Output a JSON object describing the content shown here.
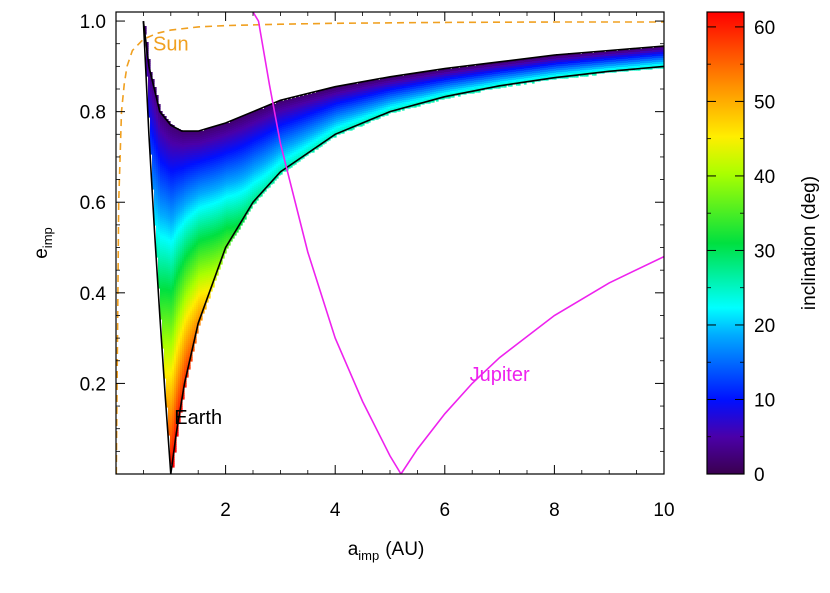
{
  "chart_data": {
    "type": "line",
    "title": "",
    "xlabel": {
      "main": "a",
      "sub": "imp",
      "unit": "(AU)"
    },
    "ylabel": {
      "main": "e",
      "sub": "imp"
    },
    "xlim": [
      0,
      10
    ],
    "ylim": [
      0,
      1.02
    ],
    "x_ticks": [
      2,
      4,
      6,
      8,
      10
    ],
    "y_ticks": [
      0.2,
      0.4,
      0.6,
      0.8,
      1.0
    ],
    "y_tick_labels": [
      "0.2",
      "0.4",
      "0.6",
      "0.8",
      "1.0"
    ],
    "grid": false,
    "colorbar": {
      "label": "inclination (deg)",
      "range": [
        0,
        62
      ],
      "ticks": [
        0,
        10,
        20,
        30,
        40,
        50,
        60
      ],
      "colormap": "rainbow (violet to red)"
    },
    "region": {
      "description_points": "Earth-crossing region boundaries",
      "upper_boundary": [
        [
          0.5,
          1.0
        ],
        [
          0.6,
          0.9
        ],
        [
          0.8,
          0.8
        ],
        [
          1.0,
          0.77
        ],
        [
          1.2,
          0.757
        ],
        [
          1.5,
          0.757
        ],
        [
          2.0,
          0.775
        ],
        [
          3.0,
          0.825
        ],
        [
          4.0,
          0.855
        ],
        [
          5.0,
          0.877
        ],
        [
          6.0,
          0.895
        ],
        [
          7.0,
          0.91
        ],
        [
          8.0,
          0.925
        ],
        [
          9.0,
          0.935
        ],
        [
          10.0,
          0.945
        ]
      ],
      "left_boundary": [
        [
          0.5,
          1.0
        ],
        [
          0.6,
          0.75
        ],
        [
          0.7,
          0.54
        ],
        [
          0.8,
          0.35
        ],
        [
          0.9,
          0.17
        ],
        [
          1.0,
          0.0
        ]
      ],
      "lower_boundary": [
        [
          1.0,
          0.0
        ],
        [
          1.1,
          0.09
        ],
        [
          1.25,
          0.2
        ],
        [
          1.5,
          0.333
        ],
        [
          2.0,
          0.5
        ],
        [
          2.5,
          0.6
        ],
        [
          3.0,
          0.667
        ],
        [
          4.0,
          0.75
        ],
        [
          5.0,
          0.8
        ],
        [
          6.0,
          0.833
        ],
        [
          7.0,
          0.857
        ],
        [
          8.0,
          0.875
        ],
        [
          9.0,
          0.889
        ],
        [
          10.0,
          0.9
        ]
      ]
    },
    "series": [
      {
        "name": "Sun",
        "color": "#f0a020",
        "style": "dashed",
        "points": [
          [
            0.005,
            0.0
          ],
          [
            0.05,
            0.6
          ],
          [
            0.1,
            0.8
          ],
          [
            0.15,
            0.86
          ],
          [
            0.2,
            0.9
          ],
          [
            0.3,
            0.935
          ],
          [
            0.5,
            0.96
          ],
          [
            0.75,
            0.973
          ],
          [
            1.0,
            0.98
          ],
          [
            1.5,
            0.987
          ],
          [
            2.0,
            0.99
          ],
          [
            3.0,
            0.993
          ],
          [
            4.0,
            0.995
          ],
          [
            6.0,
            0.997
          ],
          [
            8.0,
            0.998
          ],
          [
            10.0,
            0.998
          ]
        ]
      },
      {
        "name": "Jupiter",
        "color": "#ee22ee",
        "style": "solid",
        "points": [
          [
            2.5,
            1.02
          ],
          [
            2.6,
            1.0
          ],
          [
            2.8,
            0.86
          ],
          [
            3.0,
            0.73
          ],
          [
            3.5,
            0.49
          ],
          [
            4.0,
            0.3
          ],
          [
            4.5,
            0.16
          ],
          [
            5.0,
            0.04
          ],
          [
            5.2,
            0.0
          ],
          [
            5.5,
            0.055
          ],
          [
            6.0,
            0.133
          ],
          [
            6.5,
            0.2
          ],
          [
            7.0,
            0.257
          ],
          [
            8.0,
            0.35
          ],
          [
            9.0,
            0.422
          ],
          [
            10.0,
            0.48
          ]
        ]
      },
      {
        "name": "Earth",
        "color": "#000000",
        "style": "solid",
        "points": []
      }
    ],
    "annotations": [
      {
        "text": "Sun",
        "x": 1.0,
        "y": 0.935,
        "color": "#f0a020"
      },
      {
        "text": "Jupiter",
        "x": 7.0,
        "y": 0.205,
        "color": "#ee22ee"
      },
      {
        "text": "Earth",
        "x": 1.5,
        "y": 0.11,
        "color": "#000000"
      }
    ]
  }
}
